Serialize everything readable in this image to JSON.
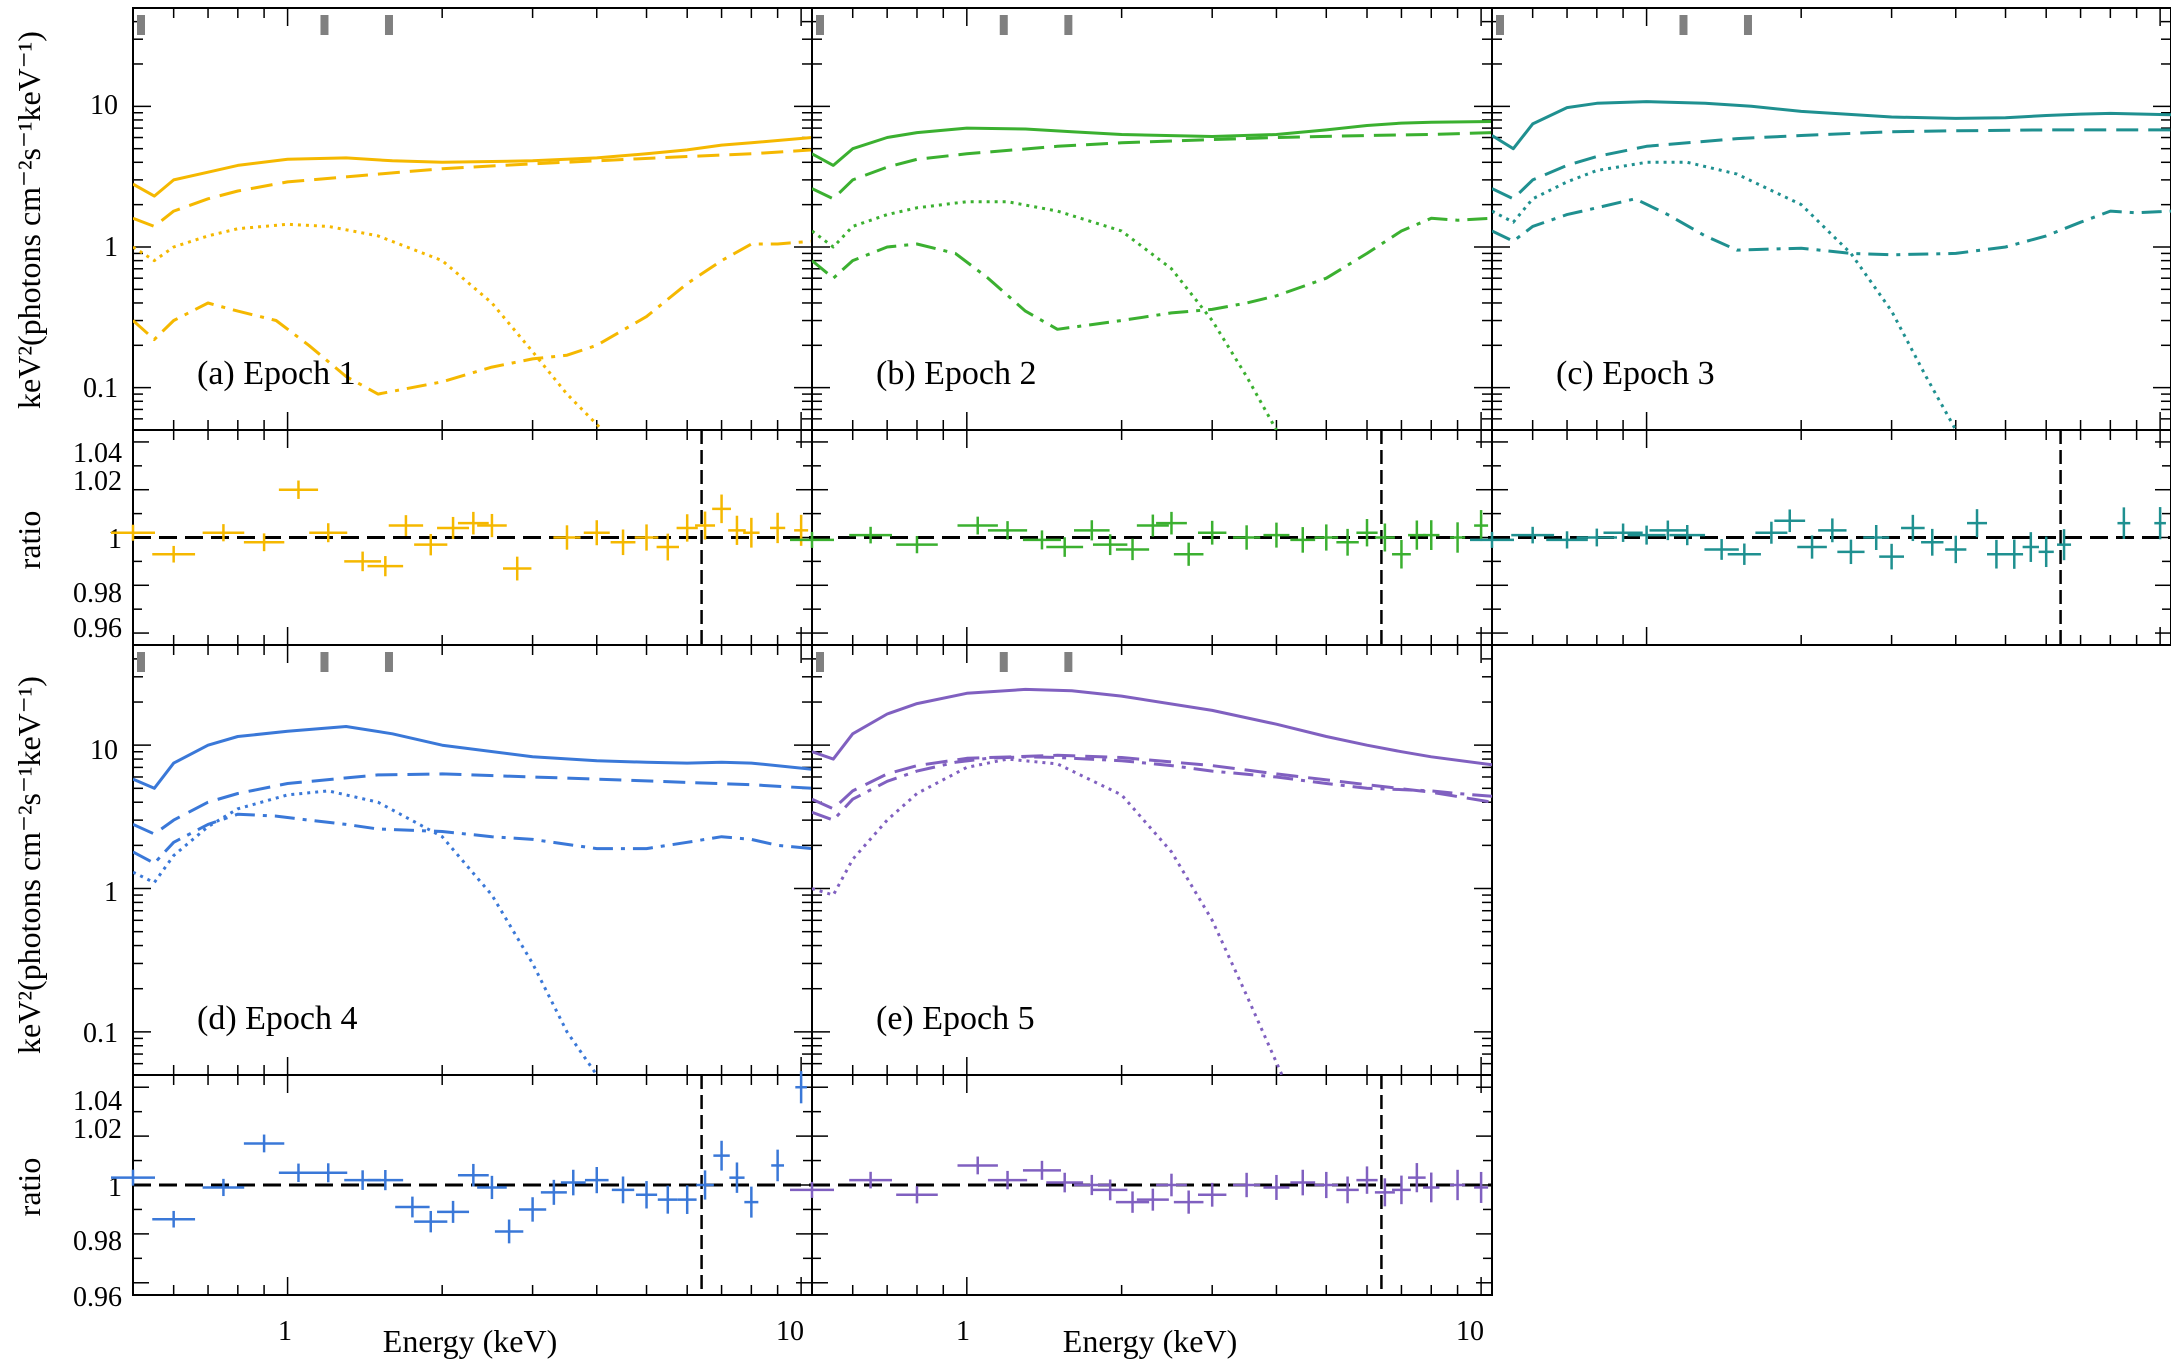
{
  "figure": {
    "y_label_spectrum": "keV²(photons cm⁻²s⁻¹keV⁻¹)",
    "y_label_ratio": "ratio",
    "x_label": "Energy (keV)",
    "spectrum_ticks": [
      "10",
      "1",
      "0.1"
    ],
    "ratio_ticks": [
      "1.04",
      "1.02",
      "1",
      "0.98",
      "0.96"
    ],
    "x_ticks": [
      "1",
      "10"
    ]
  },
  "chart_data": [
    {
      "type": "line",
      "label": "(a) Epoch 1",
      "color": "#f5b800",
      "xscale": "log",
      "yscale": "log",
      "xlim": [
        0.5,
        10.5
      ],
      "ylim": [
        0.05,
        50
      ],
      "components": {
        "total": {
          "style": "solid",
          "x": [
            0.5,
            0.55,
            0.6,
            0.7,
            0.8,
            1,
            1.3,
            1.6,
            2,
            3,
            4,
            5,
            6,
            7,
            8,
            10.5
          ],
          "y": [
            2.8,
            2.3,
            3.0,
            3.4,
            3.8,
            4.2,
            4.3,
            4.1,
            4.0,
            4.1,
            4.3,
            4.6,
            4.9,
            5.3,
            5.5,
            6.0
          ]
        },
        "power_law": {
          "style": "dashed",
          "x": [
            0.5,
            0.55,
            0.6,
            0.7,
            0.8,
            1,
            1.5,
            2,
            3,
            4,
            6,
            8,
            10.5
          ],
          "y": [
            1.6,
            1.4,
            1.8,
            2.2,
            2.5,
            2.9,
            3.3,
            3.6,
            3.9,
            4.1,
            4.4,
            4.6,
            4.9
          ]
        },
        "disk": {
          "style": "dotted",
          "x": [
            0.5,
            0.55,
            0.6,
            0.7,
            0.8,
            1,
            1.2,
            1.5,
            2,
            2.5,
            3,
            3.5,
            4.1
          ],
          "y": [
            1.0,
            0.8,
            1.0,
            1.2,
            1.35,
            1.45,
            1.4,
            1.2,
            0.8,
            0.4,
            0.18,
            0.09,
            0.05
          ]
        },
        "reflection": {
          "style": "dashdot",
          "x": [
            0.5,
            0.55,
            0.6,
            0.7,
            0.8,
            0.95,
            1.1,
            1.3,
            1.5,
            2,
            2.5,
            3,
            3.5,
            4,
            5,
            6,
            7,
            8,
            9,
            10.5
          ],
          "y": [
            0.3,
            0.22,
            0.3,
            0.4,
            0.35,
            0.3,
            0.2,
            0.12,
            0.09,
            0.11,
            0.14,
            0.16,
            0.17,
            0.2,
            0.32,
            0.55,
            0.8,
            1.05,
            1.05,
            1.1
          ]
        }
      },
      "ratio": {
        "x": [
          0.5,
          0.6,
          0.75,
          0.9,
          1.05,
          1.2,
          1.4,
          1.55,
          1.7,
          1.9,
          2.1,
          2.3,
          2.5,
          2.8,
          3.5,
          4,
          4.5,
          5,
          5.5,
          6,
          6.5,
          7,
          7.5,
          8,
          9,
          10
        ],
        "y": [
          1.002,
          0.993,
          1.002,
          0.998,
          1.02,
          1.002,
          0.99,
          0.988,
          1.005,
          0.997,
          1.004,
          1.006,
          1.005,
          0.987,
          1.0,
          1.002,
          0.998,
          1.0,
          0.996,
          1.004,
          1.005,
          1.012,
          1.003,
          1.002,
          1.004,
          1.003
        ]
      },
      "ratio_line": 6.4
    },
    {
      "type": "line",
      "label": "(b) Epoch 2",
      "color": "#3bb030",
      "xscale": "log",
      "yscale": "log",
      "xlim": [
        0.5,
        10.5
      ],
      "ylim": [
        0.05,
        50
      ],
      "components": {
        "total": {
          "style": "solid",
          "x": [
            0.5,
            0.55,
            0.6,
            0.7,
            0.8,
            1,
            1.3,
            1.6,
            2,
            3,
            4,
            5,
            6,
            7,
            8,
            10.5
          ],
          "y": [
            4.6,
            3.8,
            5.0,
            6.0,
            6.5,
            7.0,
            6.9,
            6.6,
            6.3,
            6.1,
            6.3,
            6.8,
            7.3,
            7.6,
            7.7,
            7.8
          ]
        },
        "power_law": {
          "style": "dashed",
          "x": [
            0.5,
            0.55,
            0.6,
            0.7,
            0.8,
            1,
            1.5,
            2,
            3,
            4,
            6,
            8,
            10.5
          ],
          "y": [
            2.6,
            2.2,
            3.0,
            3.7,
            4.2,
            4.6,
            5.2,
            5.5,
            5.8,
            6.0,
            6.2,
            6.3,
            6.5
          ]
        },
        "disk": {
          "style": "dotted",
          "x": [
            0.5,
            0.55,
            0.6,
            0.7,
            0.8,
            1,
            1.2,
            1.5,
            2,
            2.5,
            3,
            3.5,
            4.0
          ],
          "y": [
            1.3,
            1.0,
            1.4,
            1.7,
            1.9,
            2.1,
            2.1,
            1.8,
            1.3,
            0.7,
            0.3,
            0.12,
            0.05
          ]
        },
        "reflection": {
          "style": "dashdot",
          "x": [
            0.5,
            0.55,
            0.6,
            0.7,
            0.8,
            0.95,
            1.1,
            1.3,
            1.5,
            2,
            2.5,
            3,
            3.5,
            4,
            5,
            6,
            7,
            8,
            9,
            10.5
          ],
          "y": [
            0.8,
            0.6,
            0.8,
            1.0,
            1.05,
            0.9,
            0.6,
            0.35,
            0.26,
            0.3,
            0.34,
            0.36,
            0.4,
            0.45,
            0.6,
            0.9,
            1.3,
            1.6,
            1.55,
            1.6
          ]
        }
      },
      "ratio": {
        "x": [
          0.5,
          0.65,
          0.8,
          1.05,
          1.2,
          1.4,
          1.55,
          1.75,
          1.9,
          2.1,
          2.3,
          2.5,
          2.7,
          3,
          3.5,
          4,
          4.5,
          5,
          5.5,
          6,
          6.5,
          7,
          7.5,
          8,
          9,
          10
        ],
        "y": [
          0.999,
          1.001,
          0.997,
          1.005,
          1.003,
          0.999,
          0.996,
          1.003,
          0.997,
          0.995,
          1.005,
          1.006,
          0.993,
          1.002,
          1.0,
          1.001,
          0.999,
          1.0,
          0.998,
          1.002,
          1.0,
          0.993,
          1.001,
          1.001,
          1.0,
          1.005
        ]
      },
      "ratio_line": 6.4
    },
    {
      "type": "line",
      "label": "(c) Epoch 3",
      "color": "#1f9090",
      "xscale": "log",
      "yscale": "log",
      "xlim": [
        0.5,
        10.5
      ],
      "ylim": [
        0.05,
        50
      ],
      "components": {
        "total": {
          "style": "solid",
          "x": [
            0.5,
            0.55,
            0.6,
            0.7,
            0.8,
            1,
            1.3,
            1.6,
            2,
            3,
            4,
            5,
            6,
            7,
            8,
            10.5
          ],
          "y": [
            6.2,
            5.0,
            7.5,
            9.8,
            10.5,
            10.8,
            10.5,
            10.0,
            9.2,
            8.4,
            8.2,
            8.3,
            8.6,
            8.8,
            8.9,
            8.7
          ]
        },
        "power_law": {
          "style": "dashed",
          "x": [
            0.5,
            0.55,
            0.6,
            0.7,
            0.8,
            1,
            1.5,
            2,
            3,
            4,
            6,
            8,
            10.5
          ],
          "y": [
            2.6,
            2.2,
            3.0,
            3.8,
            4.4,
            5.2,
            5.9,
            6.2,
            6.6,
            6.7,
            6.8,
            6.8,
            6.8
          ]
        },
        "disk": {
          "style": "dotted",
          "x": [
            0.5,
            0.55,
            0.6,
            0.7,
            0.8,
            1,
            1.2,
            1.5,
            2,
            2.5,
            3,
            3.5,
            4.0
          ],
          "y": [
            1.8,
            1.5,
            2.2,
            2.9,
            3.5,
            4.0,
            4.0,
            3.3,
            2.0,
            0.9,
            0.35,
            0.12,
            0.05
          ]
        },
        "reflection": {
          "style": "dashdot",
          "x": [
            0.5,
            0.55,
            0.6,
            0.7,
            0.8,
            0.95,
            1.1,
            1.3,
            1.5,
            2,
            2.5,
            3,
            4,
            5,
            6,
            7,
            8,
            9,
            10.5
          ],
          "y": [
            1.3,
            1.1,
            1.4,
            1.7,
            1.9,
            2.2,
            1.7,
            1.2,
            0.95,
            0.98,
            0.9,
            0.88,
            0.9,
            1.0,
            1.2,
            1.5,
            1.8,
            1.75,
            1.8
          ]
        }
      },
      "ratio": {
        "x": [
          0.5,
          0.6,
          0.7,
          0.8,
          0.9,
          1.0,
          1.1,
          1.2,
          1.4,
          1.55,
          1.75,
          1.9,
          2.1,
          2.3,
          2.5,
          2.8,
          3,
          3.3,
          3.6,
          4,
          4.4,
          4.8,
          5.2,
          5.6,
          6,
          6.5,
          8.5,
          10
        ],
        "y": [
          0.999,
          1.001,
          0.999,
          1.0,
          1.002,
          1.001,
          1.003,
          1.001,
          0.995,
          0.993,
          1.002,
          1.007,
          0.996,
          1.003,
          0.994,
          1.0,
          0.992,
          1.004,
          0.998,
          0.995,
          1.006,
          0.993,
          0.993,
          0.996,
          0.994,
          0.997,
          1.006,
          1.006
        ]
      },
      "ratio_line": 6.4
    },
    {
      "type": "line",
      "label": "(d) Epoch 4",
      "color": "#3a78d8",
      "xscale": "log",
      "yscale": "log",
      "xlim": [
        0.5,
        10.5
      ],
      "ylim": [
        0.05,
        50
      ],
      "components": {
        "total": {
          "style": "solid",
          "x": [
            0.5,
            0.55,
            0.6,
            0.7,
            0.8,
            1,
            1.3,
            1.6,
            2,
            3,
            4,
            5,
            6,
            7,
            8,
            10.5
          ],
          "y": [
            5.8,
            5.0,
            7.5,
            10.0,
            11.5,
            12.5,
            13.5,
            12.0,
            10.0,
            8.3,
            7.8,
            7.6,
            7.5,
            7.6,
            7.5,
            6.8
          ]
        },
        "power_law": {
          "style": "dashed",
          "x": [
            0.5,
            0.55,
            0.6,
            0.7,
            0.8,
            1,
            1.5,
            2,
            3,
            4,
            6,
            8,
            10.5
          ],
          "y": [
            2.8,
            2.4,
            3.0,
            4.0,
            4.6,
            5.4,
            6.2,
            6.3,
            6.0,
            5.8,
            5.5,
            5.3,
            5.0
          ]
        },
        "disk": {
          "style": "dotted",
          "x": [
            0.5,
            0.55,
            0.6,
            0.7,
            0.8,
            1,
            1.2,
            1.5,
            2,
            2.5,
            3,
            3.5,
            4.0
          ],
          "y": [
            1.3,
            1.1,
            1.7,
            2.7,
            3.6,
            4.5,
            4.8,
            4.0,
            2.3,
            0.9,
            0.3,
            0.1,
            0.05
          ]
        },
        "reflection": {
          "style": "dashdot",
          "x": [
            0.5,
            0.55,
            0.6,
            0.7,
            0.8,
            0.95,
            1.1,
            1.3,
            1.5,
            2,
            2.5,
            3,
            4,
            5,
            6,
            7,
            8,
            9,
            10.5
          ],
          "y": [
            1.8,
            1.5,
            2.1,
            2.8,
            3.3,
            3.2,
            3.0,
            2.8,
            2.6,
            2.5,
            2.3,
            2.2,
            1.9,
            1.9,
            2.1,
            2.3,
            2.2,
            2.0,
            1.9
          ]
        }
      },
      "ratio": {
        "x": [
          0.5,
          0.6,
          0.75,
          0.9,
          1.05,
          1.2,
          1.4,
          1.55,
          1.75,
          1.9,
          2.1,
          2.3,
          2.5,
          2.7,
          3,
          3.3,
          3.6,
          4,
          4.5,
          5,
          5.5,
          6,
          6.5,
          7,
          7.5,
          8,
          9,
          10
        ],
        "y": [
          1.003,
          0.986,
          0.999,
          1.017,
          1.005,
          1.005,
          1.002,
          1.002,
          0.991,
          0.985,
          0.989,
          1.004,
          0.999,
          0.981,
          0.99,
          0.997,
          1.001,
          1.002,
          0.998,
          0.996,
          0.994,
          0.994,
          1.0,
          1.012,
          1.003,
          0.993,
          1.008,
          1.04
        ]
      },
      "ratio_line": 6.4
    },
    {
      "type": "line",
      "label": "(e) Epoch 5",
      "color": "#8060c0",
      "xscale": "log",
      "yscale": "log",
      "xlim": [
        0.5,
        10.5
      ],
      "ylim": [
        0.05,
        50
      ],
      "components": {
        "total": {
          "style": "solid",
          "x": [
            0.5,
            0.55,
            0.6,
            0.7,
            0.8,
            1,
            1.3,
            1.6,
            2,
            3,
            4,
            5,
            6,
            7,
            8,
            10.5
          ],
          "y": [
            9.0,
            8.0,
            12.0,
            16.5,
            19.5,
            23.0,
            24.5,
            24.0,
            22.0,
            17.5,
            14.0,
            11.5,
            10.0,
            9.0,
            8.3,
            7.3
          ]
        },
        "power_law": {
          "style": "dashed",
          "x": [
            0.5,
            0.55,
            0.6,
            0.7,
            0.8,
            1,
            1.5,
            2,
            3,
            4,
            6,
            8,
            10.5
          ],
          "y": [
            4.2,
            3.6,
            4.8,
            6.3,
            7.2,
            8.1,
            8.5,
            8.2,
            7.2,
            6.3,
            5.3,
            4.7,
            4.0
          ]
        },
        "disk": {
          "style": "dotted",
          "x": [
            0.5,
            0.55,
            0.6,
            0.7,
            0.8,
            1,
            1.2,
            1.5,
            2,
            2.5,
            3,
            3.5,
            4.1
          ],
          "y": [
            1.0,
            0.9,
            1.6,
            3.0,
            4.6,
            7.0,
            8.0,
            7.4,
            4.5,
            1.8,
            0.6,
            0.18,
            0.05
          ]
        },
        "reflection": {
          "style": "dashdot",
          "x": [
            0.5,
            0.55,
            0.6,
            0.7,
            0.8,
            0.95,
            1.1,
            1.3,
            1.5,
            2,
            2.5,
            3,
            4,
            5,
            6,
            7,
            8,
            9,
            10.5
          ],
          "y": [
            3.4,
            3.0,
            4.2,
            5.6,
            6.6,
            7.6,
            8.1,
            8.3,
            8.2,
            7.8,
            7.2,
            6.6,
            6.0,
            5.4,
            5.0,
            4.9,
            4.8,
            4.6,
            4.4
          ]
        }
      },
      "ratio": {
        "x": [
          0.5,
          0.65,
          0.8,
          1.05,
          1.2,
          1.4,
          1.55,
          1.75,
          1.9,
          2.1,
          2.3,
          2.5,
          2.7,
          3,
          3.5,
          4,
          4.5,
          5,
          5.5,
          6,
          6.5,
          7,
          7.5,
          8,
          9,
          10
        ],
        "y": [
          0.998,
          1.002,
          0.996,
          1.008,
          1.002,
          1.006,
          1.001,
          1.0,
          0.998,
          0.993,
          0.994,
          1.0,
          0.993,
          0.996,
          1.0,
          0.999,
          1.001,
          1.0,
          0.998,
          1.002,
          0.997,
          0.998,
          1.003,
          0.999,
          1.0,
          0.999
        ]
      },
      "ratio_line": 6.4
    }
  ]
}
